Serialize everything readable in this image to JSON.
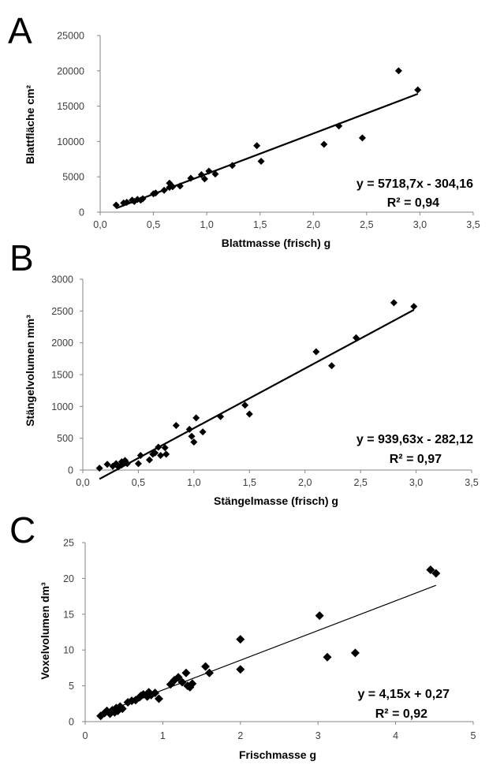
{
  "chart_data": [
    {
      "type": "scatter",
      "panel": "A",
      "xlabel": "Blattmasse (frisch) g",
      "ylabel": "Blattfläche cm²",
      "xlim": [
        0,
        3.5
      ],
      "ylim": [
        0,
        25000
      ],
      "x_ticks": [
        "0,0",
        "0,5",
        "1,0",
        "1,5",
        "2,0",
        "2,5",
        "3,0",
        "3,5"
      ],
      "y_ticks": [
        "0",
        "5000",
        "10000",
        "15000",
        "20000",
        "25000"
      ],
      "grid": false,
      "marker": "diamond",
      "points": [
        [
          0.15,
          1000
        ],
        [
          0.22,
          1300
        ],
        [
          0.25,
          1400
        ],
        [
          0.3,
          1700
        ],
        [
          0.32,
          1500
        ],
        [
          0.35,
          1800
        ],
        [
          0.38,
          1700
        ],
        [
          0.4,
          1900
        ],
        [
          0.5,
          2600
        ],
        [
          0.52,
          2700
        ],
        [
          0.6,
          3100
        ],
        [
          0.65,
          3500
        ],
        [
          0.65,
          4100
        ],
        [
          0.68,
          3600
        ],
        [
          0.75,
          3700
        ],
        [
          0.85,
          4800
        ],
        [
          0.95,
          5300
        ],
        [
          0.98,
          4700
        ],
        [
          1.02,
          5800
        ],
        [
          1.08,
          5400
        ],
        [
          1.24,
          6600
        ],
        [
          1.47,
          9400
        ],
        [
          1.51,
          7200
        ],
        [
          2.1,
          9600
        ],
        [
          2.24,
          12200
        ],
        [
          2.46,
          10500
        ],
        [
          2.8,
          20000
        ],
        [
          2.98,
          17300
        ]
      ],
      "trendline": {
        "slope": 5718.7,
        "intercept": -304.16,
        "x_range": [
          0.15,
          2.98
        ]
      },
      "equation": "y = 5718,7x - 304,16",
      "r_squared": "R² = 0,94"
    },
    {
      "type": "scatter",
      "panel": "B",
      "xlabel": "Stängelmasse (frisch) g",
      "ylabel": "Stängelvolumen mm³",
      "xlim": [
        0,
        3.5
      ],
      "ylim": [
        0,
        3000
      ],
      "x_ticks": [
        "0,0",
        "0,5",
        "1,0",
        "1,5",
        "2,0",
        "2,5",
        "3,0",
        "3,5"
      ],
      "y_ticks": [
        "0",
        "500",
        "1000",
        "1500",
        "2000",
        "2500",
        "3000"
      ],
      "grid": false,
      "marker": "diamond",
      "points": [
        [
          0.15,
          30
        ],
        [
          0.22,
          90
        ],
        [
          0.27,
          60
        ],
        [
          0.3,
          100
        ],
        [
          0.32,
          50
        ],
        [
          0.35,
          80
        ],
        [
          0.35,
          130
        ],
        [
          0.38,
          150
        ],
        [
          0.4,
          100
        ],
        [
          0.5,
          100
        ],
        [
          0.52,
          230
        ],
        [
          0.6,
          160
        ],
        [
          0.63,
          250
        ],
        [
          0.65,
          270
        ],
        [
          0.68,
          360
        ],
        [
          0.7,
          230
        ],
        [
          0.74,
          350
        ],
        [
          0.75,
          250
        ],
        [
          0.84,
          700
        ],
        [
          0.96,
          640
        ],
        [
          0.98,
          530
        ],
        [
          1.0,
          440
        ],
        [
          1.02,
          820
        ],
        [
          1.08,
          600
        ],
        [
          1.24,
          840
        ],
        [
          1.46,
          1020
        ],
        [
          1.5,
          880
        ],
        [
          2.1,
          1860
        ],
        [
          2.24,
          1640
        ],
        [
          2.46,
          2080
        ],
        [
          2.8,
          2630
        ],
        [
          2.98,
          2570
        ]
      ],
      "trendline": {
        "slope": 939.63,
        "intercept": -282.12,
        "x_range": [
          0.15,
          2.98
        ]
      },
      "equation": "y = 939,63x - 282,12",
      "r_squared": "R² = 0,97"
    },
    {
      "type": "scatter",
      "panel": "C",
      "xlabel": "Frischmasse g",
      "ylabel": "Voxelvolumen dm³",
      "xlim": [
        0,
        5
      ],
      "ylim": [
        0,
        25
      ],
      "x_ticks": [
        "0",
        "1",
        "2",
        "3",
        "4",
        "5"
      ],
      "y_ticks": [
        "0",
        "5",
        "10",
        "15",
        "20",
        "25"
      ],
      "grid": false,
      "marker": "diamond",
      "points": [
        [
          0.2,
          0.8
        ],
        [
          0.25,
          1.2
        ],
        [
          0.28,
          1.5
        ],
        [
          0.32,
          1.1
        ],
        [
          0.35,
          1.6
        ],
        [
          0.38,
          1.3
        ],
        [
          0.4,
          1.9
        ],
        [
          0.42,
          1.5
        ],
        [
          0.45,
          2.1
        ],
        [
          0.48,
          1.8
        ],
        [
          0.55,
          2.7
        ],
        [
          0.6,
          2.9
        ],
        [
          0.65,
          3.0
        ],
        [
          0.7,
          3.4
        ],
        [
          0.72,
          3.6
        ],
        [
          0.75,
          3.8
        ],
        [
          0.8,
          3.5
        ],
        [
          0.82,
          4.1
        ],
        [
          0.85,
          3.7
        ],
        [
          0.9,
          4.0
        ],
        [
          0.95,
          3.2
        ],
        [
          1.1,
          5.2
        ],
        [
          1.15,
          5.8
        ],
        [
          1.2,
          6.2
        ],
        [
          1.25,
          5.5
        ],
        [
          1.3,
          6.8
        ],
        [
          1.32,
          5.0
        ],
        [
          1.35,
          4.8
        ],
        [
          1.38,
          5.3
        ],
        [
          1.55,
          7.7
        ],
        [
          1.6,
          6.8
        ],
        [
          2.0,
          11.5
        ],
        [
          2.0,
          7.3
        ],
        [
          3.02,
          14.8
        ],
        [
          3.12,
          9.0
        ],
        [
          3.48,
          9.6
        ],
        [
          4.45,
          21.2
        ],
        [
          4.52,
          20.7
        ]
      ],
      "trendline": {
        "slope": 4.15,
        "intercept": 0.27,
        "x_range": [
          0.2,
          4.52
        ]
      },
      "equation": "y = 4,15x + 0,27",
      "r_squared": "R² = 0,92"
    }
  ]
}
